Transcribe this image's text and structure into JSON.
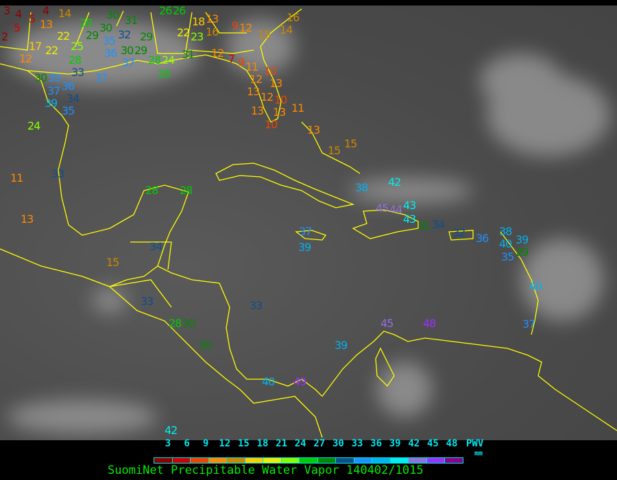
{
  "title": "SuomiNet Precipitable Water Vapor 140402/1015",
  "legend": {
    "label": "PWV",
    "unit": "mm",
    "ticks": [
      "3",
      "6",
      "9",
      "12",
      "15",
      "18",
      "21",
      "24",
      "27",
      "30",
      "33",
      "36",
      "39",
      "42",
      "45",
      "48"
    ],
    "colors": [
      "#8b0000",
      "#cc0000",
      "#ee4400",
      "#ff8800",
      "#cc8800",
      "#ffcc00",
      "#eeee00",
      "#88ff00",
      "#00cc00",
      "#008800",
      "#104e8b",
      "#1e90ff",
      "#00b2ee",
      "#00eeee",
      "#9370db",
      "#9b30ff",
      "#8b008b"
    ]
  },
  "coastline_color": "#ffff00",
  "stations": [
    "3",
    "4",
    "5",
    "4",
    "14",
    "5",
    "2",
    "13",
    "17",
    "22",
    "12",
    "22",
    "25",
    "28",
    "28",
    "29",
    "30",
    "30",
    "31",
    "32",
    "35",
    "36",
    "30",
    "29",
    "29",
    "37",
    "33",
    "30",
    "35",
    "36",
    "37",
    "34",
    "37",
    "39",
    "35",
    "26",
    "26",
    "28",
    "24",
    "26",
    "31",
    "22",
    "23",
    "18",
    "13",
    "16",
    "9",
    "12",
    "15",
    "16",
    "14",
    "12",
    "7",
    "9",
    "11",
    "12",
    "10",
    "13",
    "13",
    "12",
    "10",
    "13",
    "13",
    "10",
    "11",
    "13",
    "15",
    "15",
    "24",
    "11",
    "13",
    "33",
    "28",
    "28",
    "34",
    "15",
    "33",
    "28",
    "30",
    "30",
    "33",
    "39",
    "40",
    "49",
    "38",
    "42",
    "45",
    "44",
    "43",
    "43",
    "31",
    "34",
    "32",
    "36",
    "38",
    "40",
    "39",
    "29",
    "35",
    "37",
    "39",
    "40",
    "37",
    "45",
    "48",
    "42"
  ]
}
